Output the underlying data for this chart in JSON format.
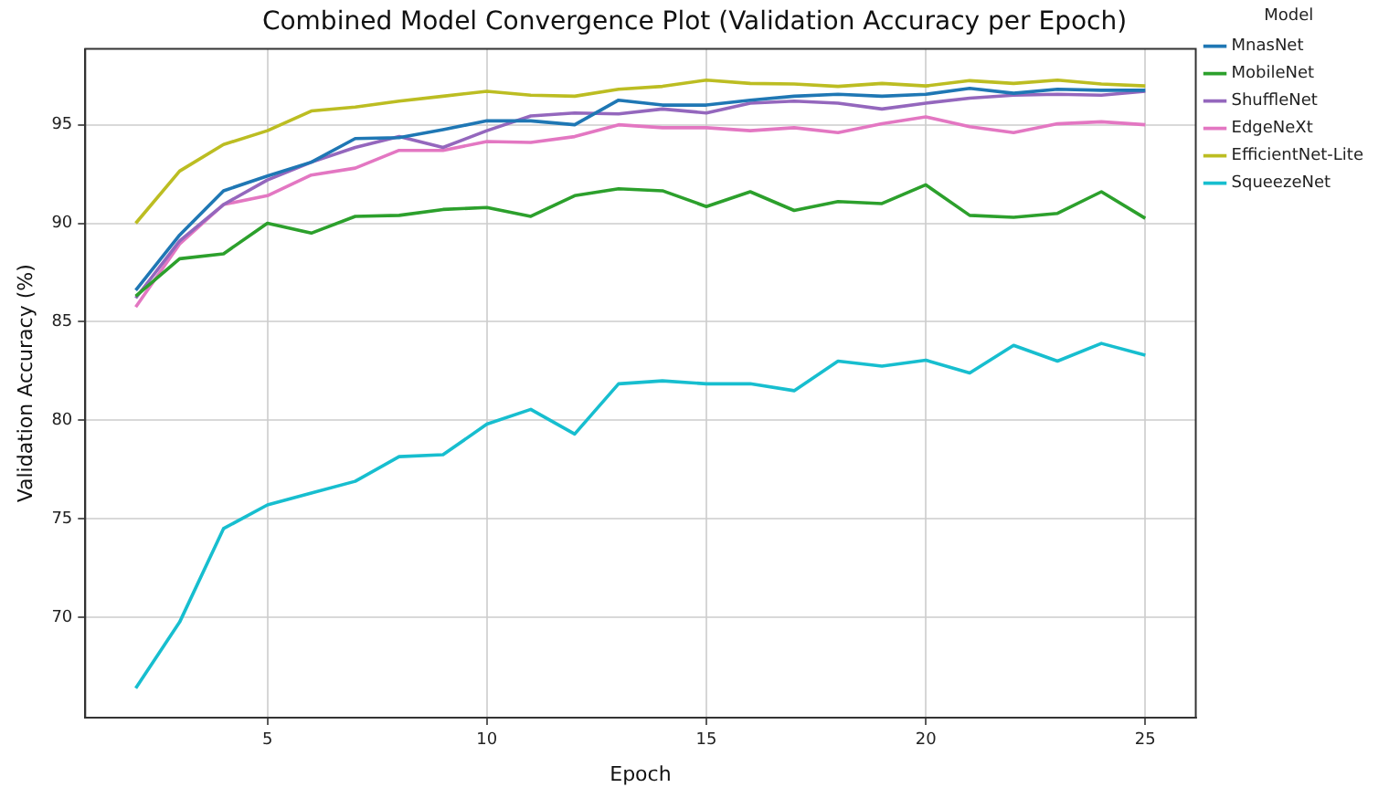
{
  "chart_data": {
    "type": "line",
    "title": "Combined Model Convergence Plot (Validation Accuracy per Epoch)",
    "xlabel": "Epoch",
    "ylabel": "Validation Accuracy (%)",
    "legend_title": "Model",
    "legend": "top right",
    "grid": true,
    "marker": "none",
    "line_style": "solid",
    "x": [
      2,
      3,
      4,
      5,
      6,
      7,
      8,
      9,
      10,
      11,
      12,
      13,
      14,
      15,
      16,
      17,
      18,
      19,
      20,
      21,
      22,
      23,
      24,
      25
    ],
    "xlim": [
      0.85,
      26.15
    ],
    "xticks": [
      5,
      10,
      15,
      20,
      25
    ],
    "ylim": [
      64.9,
      98.85
    ],
    "yticks": [
      70,
      75,
      80,
      85,
      90,
      95
    ],
    "series": [
      {
        "name": "MnasNet",
        "color": "#1f77b4",
        "values": [
          86.6,
          89.4,
          91.65,
          92.4,
          93.1,
          94.3,
          94.35,
          94.75,
          95.2,
          95.2,
          95.0,
          96.25,
          96.0,
          96.0,
          96.25,
          96.45,
          96.55,
          96.45,
          96.55,
          96.85,
          96.6,
          96.8,
          96.75,
          96.75
        ]
      },
      {
        "name": "MobileNet",
        "color": "#2ca02c",
        "values": [
          86.3,
          88.2,
          88.45,
          90.0,
          89.5,
          90.35,
          90.4,
          90.7,
          90.8,
          90.35,
          91.4,
          91.75,
          91.65,
          90.85,
          91.6,
          90.65,
          91.1,
          91.0,
          91.95,
          90.4,
          90.3,
          90.5,
          91.6,
          90.25
        ]
      },
      {
        "name": "ShuffleNet",
        "color": "#9467bd",
        "values": [
          86.2,
          89.1,
          90.95,
          92.2,
          93.1,
          93.85,
          94.4,
          93.85,
          94.7,
          95.45,
          95.6,
          95.55,
          95.8,
          95.6,
          96.1,
          96.2,
          96.1,
          95.8,
          96.1,
          96.35,
          96.5,
          96.55,
          96.5,
          96.7
        ]
      },
      {
        "name": "EdgeNeXt",
        "color": "#e377c2",
        "values": [
          85.75,
          88.95,
          90.95,
          91.4,
          92.45,
          92.8,
          93.7,
          93.7,
          94.15,
          94.1,
          94.4,
          95.0,
          94.85,
          94.85,
          94.7,
          94.85,
          94.6,
          95.05,
          95.4,
          94.9,
          94.6,
          95.05,
          95.15,
          95.0
        ]
      },
      {
        "name": "EfficientNet-Lite",
        "color": "#bcbd22",
        "values": [
          90.0,
          92.65,
          94.0,
          94.7,
          95.7,
          95.9,
          96.2,
          96.45,
          96.7,
          96.5,
          96.45,
          96.8,
          96.95,
          97.27,
          97.1,
          97.07,
          96.95,
          97.1,
          96.97,
          97.24,
          97.1,
          97.27,
          97.07,
          96.97
        ]
      },
      {
        "name": "SqueezeNet",
        "color": "#17becf",
        "values": [
          66.4,
          69.75,
          74.5,
          75.7,
          76.3,
          76.9,
          78.15,
          78.25,
          79.8,
          80.55,
          79.3,
          81.85,
          82.0,
          81.85,
          81.85,
          81.5,
          83.0,
          82.75,
          83.05,
          82.4,
          83.8,
          83.0,
          83.9,
          83.3
        ]
      }
    ]
  }
}
